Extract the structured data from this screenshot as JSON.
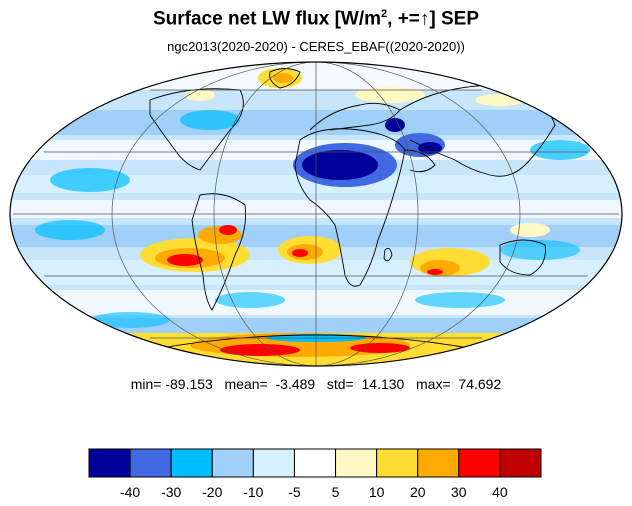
{
  "title": {
    "main": "Surface net LW flux [W/m",
    "sup": "2",
    "rest": ", +=↑]  SEP"
  },
  "subtitle": "ngc2013(2020-2020) - CERES_EBAF((2020-2020))",
  "stats": {
    "min_label": "min=",
    "min": "-89.153",
    "mean_label": "mean=",
    "mean": "-3.489",
    "std_label": "std=",
    "std": "14.130",
    "max_label": "max=",
    "max": "74.692"
  },
  "colorbar": {
    "colors": [
      "#00009a",
      "#4169e1",
      "#00bfff",
      "#a0d0f8",
      "#d6f0ff",
      "#ffffff",
      "#fff9c4",
      "#ffdd33",
      "#ffaa00",
      "#ff0000",
      "#c00000"
    ],
    "tick_labels": [
      "-40",
      "-30",
      "-20",
      "-10",
      "-5",
      "5",
      "10",
      "20",
      "30",
      "40"
    ]
  }
}
